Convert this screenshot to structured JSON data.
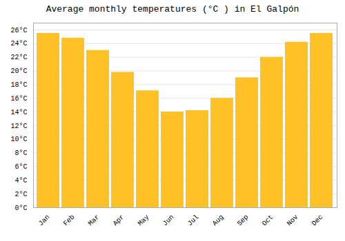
{
  "chart_data": {
    "type": "bar",
    "title": "Average monthly temperatures (°C ) in El Galpón",
    "categories": [
      "Jan",
      "Feb",
      "Mar",
      "Apr",
      "May",
      "Jun",
      "Jul",
      "Aug",
      "Sep",
      "Oct",
      "Nov",
      "Dec"
    ],
    "values": [
      25.5,
      24.8,
      23.0,
      19.8,
      17.1,
      14.0,
      14.2,
      16.0,
      19.0,
      22.0,
      24.2,
      25.5
    ],
    "color": "#FFC125",
    "ylim": [
      0,
      27
    ],
    "yticks": [
      {
        "value": 0,
        "label": "0°C"
      },
      {
        "value": 2,
        "label": "2°C"
      },
      {
        "value": 4,
        "label": "4°C"
      },
      {
        "value": 6,
        "label": "6°C"
      },
      {
        "value": 8,
        "label": "8°C"
      },
      {
        "value": 10,
        "label": "10°C"
      },
      {
        "value": 12,
        "label": "12°C"
      },
      {
        "value": 14,
        "label": "14°C"
      },
      {
        "value": 16,
        "label": "16°C"
      },
      {
        "value": 18,
        "label": "18°C"
      },
      {
        "value": 20,
        "label": "20°C"
      },
      {
        "value": 22,
        "label": "22°C"
      },
      {
        "value": 24,
        "label": "24°C"
      },
      {
        "value": 26,
        "label": "26°C"
      }
    ],
    "grid": true
  }
}
